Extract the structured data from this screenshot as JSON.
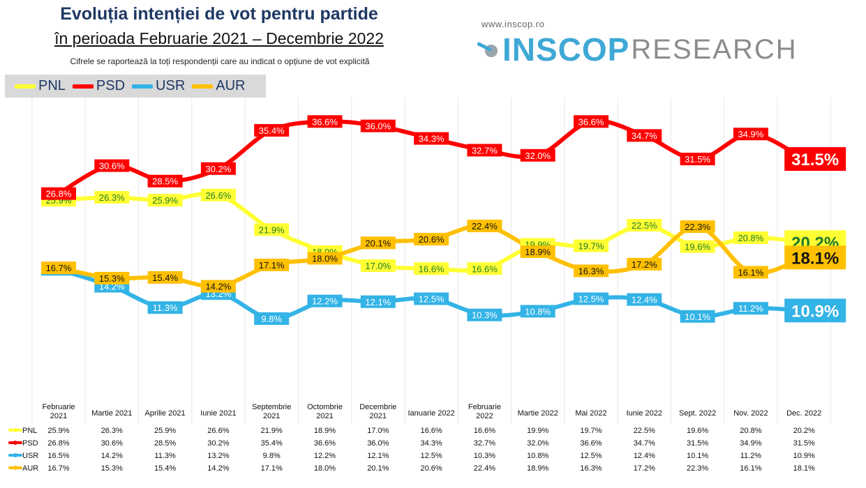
{
  "header": {
    "title_line1": "Evoluția intenției de vot pentru partide",
    "title_line2": "în perioada Februarie 2021 – Decembrie 2022",
    "subtitle": "Cifrele se raportează la toți respondenții care au indicat o opțiune de vot explicită",
    "website": "www.inscop.ro",
    "logo_main": "INSCOP",
    "logo_sub": "RESEARCH"
  },
  "colors": {
    "PNL": "#ffff33",
    "PSD": "#ff0000",
    "USR": "#33b3e6",
    "AUR": "#ffc000",
    "logo": "#3fa8d6"
  },
  "chart_data": {
    "type": "line",
    "title": "Evoluția intenției de vot pentru partide",
    "categories": [
      "Februarie 2021",
      "Martie 2021",
      "Aprilie 2021",
      "Iunie 2021",
      "Septembrie 2021",
      "Octombrie 2021",
      "Decembrie 2021",
      "Ianuarie 2022",
      "Februarie 2022",
      "Martie 2022",
      "Mai 2022",
      "Iunie 2022",
      "Sept. 2022",
      "Nov. 2022",
      "Dec. 2022"
    ],
    "category_lines": [
      [
        "Februarie",
        "2021"
      ],
      [
        "Martie 2021"
      ],
      [
        "Aprilie 2021"
      ],
      [
        "Iunie 2021"
      ],
      [
        "Septembrie",
        "2021"
      ],
      [
        "Octombrie",
        "2021"
      ],
      [
        "Decembrie",
        "2021"
      ],
      [
        "Ianuarie 2022"
      ],
      [
        "Februarie",
        "2022"
      ],
      [
        "Martie 2022"
      ],
      [
        "Mai 2022"
      ],
      [
        "Iunie 2022"
      ],
      [
        "Sept. 2022"
      ],
      [
        "Nov. 2022"
      ],
      [
        "Dec. 2022"
      ]
    ],
    "series": [
      {
        "name": "PNL",
        "values": [
          25.9,
          26.3,
          25.9,
          26.6,
          21.9,
          18.9,
          17.0,
          16.6,
          16.6,
          19.9,
          19.7,
          22.5,
          19.6,
          20.8,
          20.2
        ]
      },
      {
        "name": "PSD",
        "values": [
          26.8,
          30.6,
          28.5,
          30.2,
          35.4,
          36.6,
          36.0,
          34.3,
          32.7,
          32.0,
          36.6,
          34.7,
          31.5,
          34.9,
          31.5
        ]
      },
      {
        "name": "USR",
        "values": [
          16.5,
          14.2,
          11.3,
          13.2,
          9.8,
          12.2,
          12.1,
          12.5,
          10.3,
          10.8,
          12.5,
          12.4,
          10.1,
          11.2,
          10.9
        ]
      },
      {
        "name": "AUR",
        "values": [
          16.7,
          15.3,
          15.4,
          14.2,
          17.1,
          18.0,
          20.1,
          20.6,
          22.4,
          18.9,
          16.3,
          17.2,
          22.3,
          16.1,
          18.1
        ]
      }
    ],
    "value_suffix": "%",
    "legend_position": "top-left",
    "grid": "vertical",
    "table_value_suffix": "%"
  }
}
